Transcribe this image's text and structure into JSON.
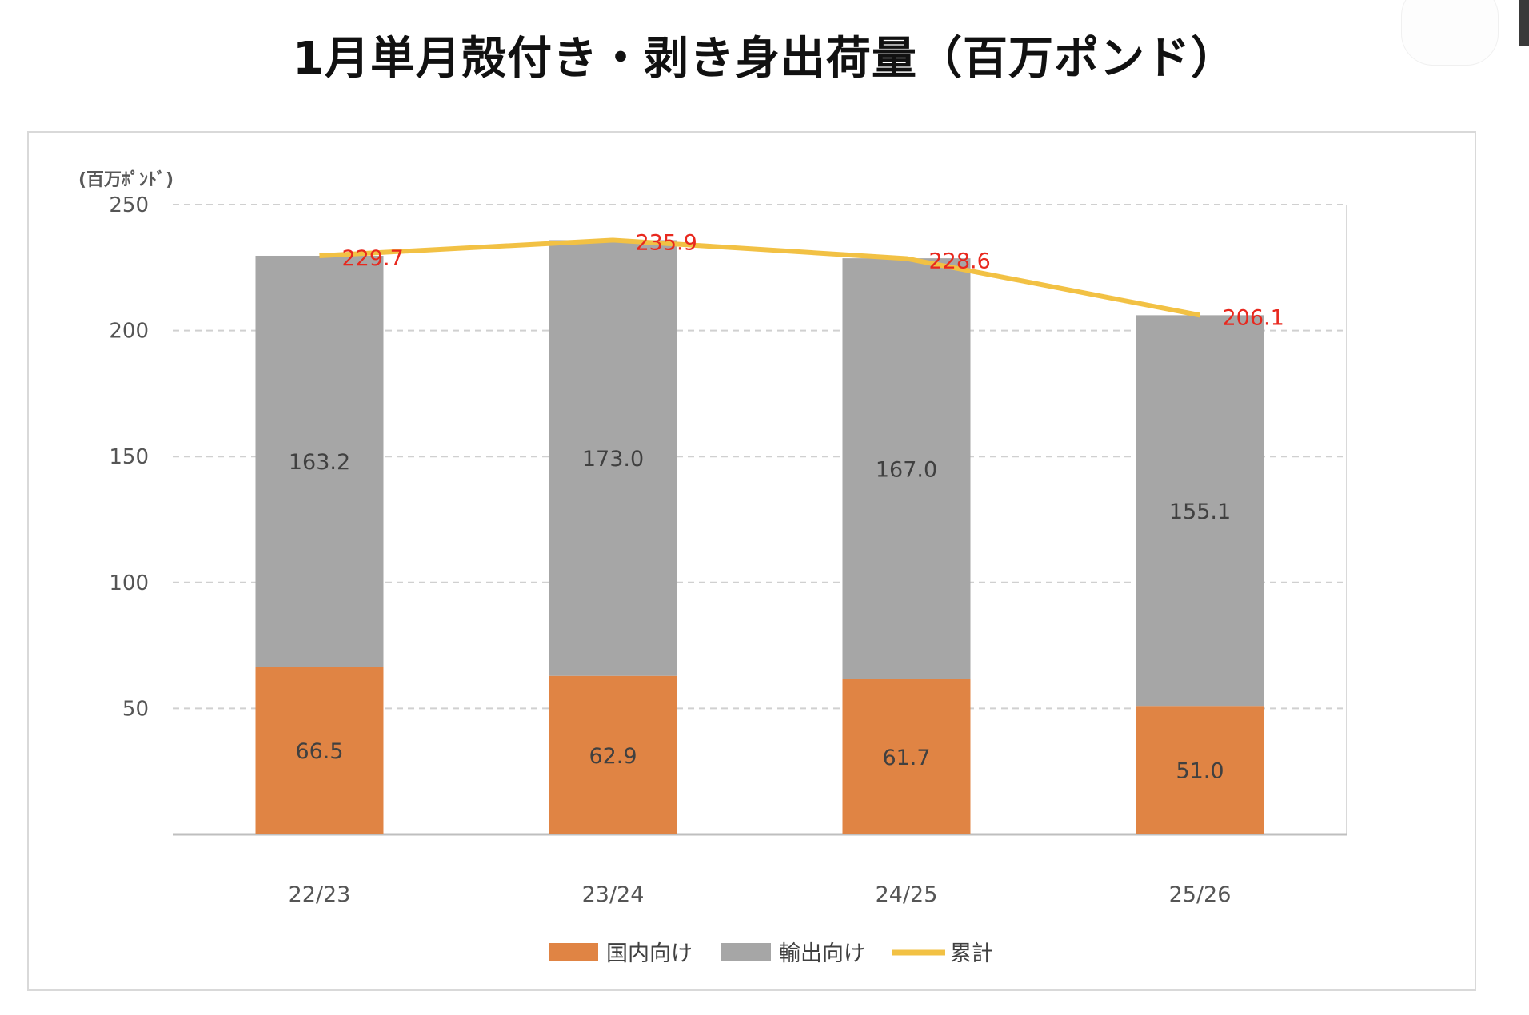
{
  "title": "1月単月殻付き・剥き身出荷量（百万ポンド）",
  "colors": {
    "domestic": "#E08444",
    "export": "#A6A6A6",
    "total_line": "#F2C144",
    "total_label": "#E8281E",
    "axis_text": "#555555",
    "value_text": "#404040",
    "grid": "#d0d0d0"
  },
  "chart_data": {
    "type": "bar",
    "stacked": true,
    "title": "1月単月殻付き・剥き身出荷量（百万ポンド）",
    "unit_label": "(百万ﾎﾟﾝﾄﾞ)",
    "categories": [
      "22/23",
      "23/24",
      "24/25",
      "25/26"
    ],
    "series": [
      {
        "name": "国内向け",
        "type": "bar",
        "values": [
          66.5,
          62.9,
          61.7,
          51.0
        ],
        "labels": [
          "66.5",
          "62.9",
          "61.7",
          "51.0"
        ]
      },
      {
        "name": "輸出向け",
        "type": "bar",
        "values": [
          163.2,
          173.0,
          167.0,
          155.1
        ],
        "labels": [
          "163.2",
          "173.0",
          "167.0",
          "155.1"
        ]
      },
      {
        "name": "累計",
        "type": "line",
        "values": [
          229.7,
          235.9,
          228.6,
          206.1
        ],
        "labels": [
          "229.7",
          "235.9",
          "228.6",
          "206.1"
        ]
      }
    ],
    "ylim": [
      0,
      250
    ],
    "yticks": [
      50,
      100,
      150,
      200,
      250
    ],
    "grid": true,
    "legend_position": "bottom"
  }
}
